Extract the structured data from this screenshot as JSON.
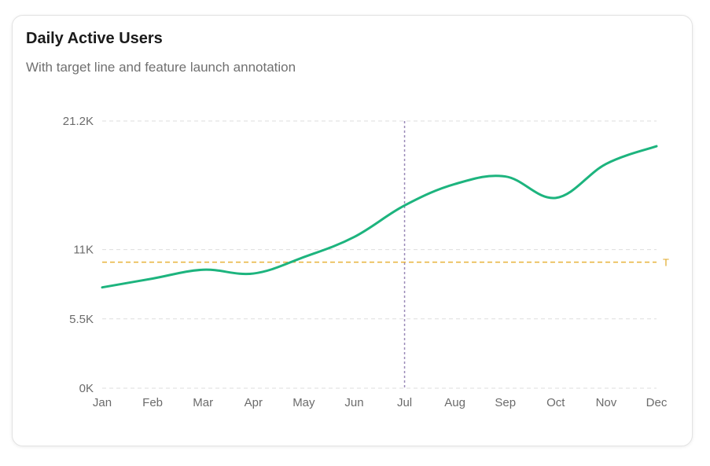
{
  "card": {
    "title": "Daily Active Users",
    "subtitle": "With target line and feature launch annotation"
  },
  "colors": {
    "line": "#1db47e",
    "target": "#e8b23a",
    "annotation": "#9a8ab8",
    "grid": "#dddddd"
  },
  "chart_data": {
    "type": "line",
    "title": "Daily Active Users",
    "subtitle": "With target line and feature launch annotation",
    "categories": [
      "Jan",
      "Feb",
      "Mar",
      "Apr",
      "May",
      "Jun",
      "Jul",
      "Aug",
      "Sep",
      "Oct",
      "Nov",
      "Dec"
    ],
    "series": [
      {
        "values": [
          8000,
          8700,
          9400,
          9100,
          10400,
          12000,
          14500,
          16200,
          16800,
          15100,
          17800,
          19200
        ]
      }
    ],
    "y_ticks": [
      "0K",
      "5.5K",
      "11K",
      "21.2K"
    ],
    "y_tick_values": [
      0,
      5500,
      11000,
      21200
    ],
    "ylim": [
      0,
      21200
    ],
    "target": {
      "value": 10000,
      "label": "T"
    },
    "annotation": {
      "category": "Jul"
    },
    "grid": true,
    "legend": "none"
  }
}
